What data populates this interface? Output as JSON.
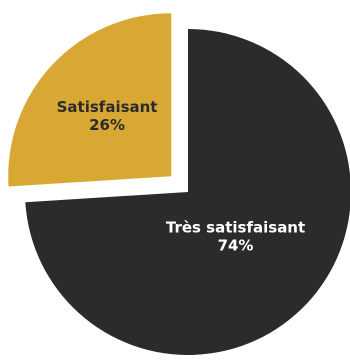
{
  "chart_data": {
    "type": "pie",
    "title": "",
    "slices": [
      {
        "label": "Très satisfaisant",
        "value": 74,
        "value_label": "74%",
        "color": "#2b2b2d",
        "exploded": false
      },
      {
        "label": "Satisfaisant",
        "value": 26,
        "value_label": "26%",
        "color": "#d9a834",
        "exploded": true
      }
    ],
    "label_colors": {
      "on_dark": "#ffffff",
      "on_light": "#2b2b2d"
    }
  }
}
